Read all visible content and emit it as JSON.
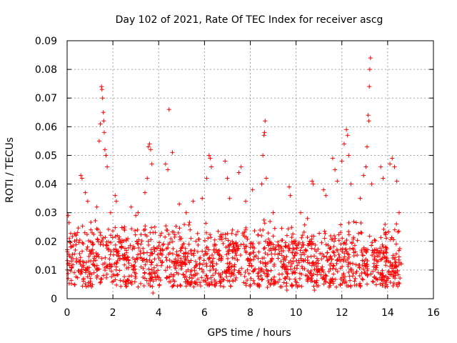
{
  "chart_data": {
    "type": "scatter",
    "title": "Day 102 of 2021, Rate Of TEC Index for receiver ascg",
    "xlabel": "GPS time / hours",
    "ylabel": "ROTI / TECUs",
    "xlim": [
      0,
      16
    ],
    "ylim": [
      0,
      0.09
    ],
    "x_ticks": [
      0,
      2,
      4,
      6,
      8,
      10,
      12,
      14,
      16
    ],
    "y_ticks": [
      0,
      0.01,
      0.02,
      0.03,
      0.04,
      0.05,
      0.06,
      0.07,
      0.08,
      0.09
    ],
    "x_tick_labels": [
      "0",
      "2",
      "4",
      "6",
      "8",
      "10",
      "12",
      "14",
      "16"
    ],
    "y_tick_labels": [
      "0",
      "0.01",
      "0.02",
      "0.03",
      "0.04",
      "0.05",
      "0.06",
      "0.07",
      "0.08",
      "0.09"
    ],
    "grid": true,
    "marker": "+",
    "marker_color": "#ff0000",
    "data_x_range": [
      0,
      14.6
    ],
    "series": [
      {
        "name": "ROTI",
        "points": [
          [
            0.05,
            0.029
          ],
          [
            0.1,
            0.021
          ],
          [
            0.15,
            0.018
          ],
          [
            0.2,
            0.011
          ],
          [
            0.6,
            0.043
          ],
          [
            0.65,
            0.042
          ],
          [
            0.8,
            0.037
          ],
          [
            0.9,
            0.034
          ],
          [
            1.3,
            0.032
          ],
          [
            1.4,
            0.055
          ],
          [
            1.45,
            0.061
          ],
          [
            1.5,
            0.074
          ],
          [
            1.52,
            0.073
          ],
          [
            1.55,
            0.07
          ],
          [
            1.58,
            0.065
          ],
          [
            1.6,
            0.062
          ],
          [
            1.62,
            0.058
          ],
          [
            1.65,
            0.052
          ],
          [
            1.7,
            0.05
          ],
          [
            1.75,
            0.046
          ],
          [
            1.9,
            0.03
          ],
          [
            2.1,
            0.036
          ],
          [
            2.15,
            0.034
          ],
          [
            2.8,
            0.032
          ],
          [
            3.0,
            0.029
          ],
          [
            3.1,
            0.03
          ],
          [
            3.4,
            0.037
          ],
          [
            3.5,
            0.042
          ],
          [
            3.55,
            0.053
          ],
          [
            3.6,
            0.054
          ],
          [
            3.65,
            0.052
          ],
          [
            3.7,
            0.047
          ],
          [
            3.75,
            0.002
          ],
          [
            4.3,
            0.047
          ],
          [
            4.4,
            0.045
          ],
          [
            4.45,
            0.066
          ],
          [
            4.6,
            0.051
          ],
          [
            4.9,
            0.033
          ],
          [
            5.2,
            0.03
          ],
          [
            5.5,
            0.034
          ],
          [
            5.9,
            0.035
          ],
          [
            6.1,
            0.042
          ],
          [
            6.2,
            0.05
          ],
          [
            6.25,
            0.049
          ],
          [
            6.3,
            0.046
          ],
          [
            6.9,
            0.048
          ],
          [
            7.0,
            0.042
          ],
          [
            7.1,
            0.035
          ],
          [
            7.5,
            0.044
          ],
          [
            7.6,
            0.046
          ],
          [
            7.8,
            0.034
          ],
          [
            8.1,
            0.038
          ],
          [
            8.5,
            0.04
          ],
          [
            8.55,
            0.05
          ],
          [
            8.6,
            0.057
          ],
          [
            8.62,
            0.058
          ],
          [
            8.65,
            0.062
          ],
          [
            8.7,
            0.042
          ],
          [
            8.75,
            0.004
          ],
          [
            9.0,
            0.03
          ],
          [
            9.6,
            0.003
          ],
          [
            9.7,
            0.039
          ],
          [
            9.75,
            0.036
          ],
          [
            10.2,
            0.03
          ],
          [
            10.5,
            0.028
          ],
          [
            10.7,
            0.041
          ],
          [
            10.75,
            0.04
          ],
          [
            10.8,
            0.003
          ],
          [
            11.2,
            0.038
          ],
          [
            11.3,
            0.036
          ],
          [
            11.6,
            0.049
          ],
          [
            11.7,
            0.045
          ],
          [
            11.8,
            0.041
          ],
          [
            12.0,
            0.048
          ],
          [
            12.1,
            0.054
          ],
          [
            12.2,
            0.059
          ],
          [
            12.25,
            0.057
          ],
          [
            12.3,
            0.05
          ],
          [
            12.4,
            0.04
          ],
          [
            12.8,
            0.035
          ],
          [
            12.95,
            0.043
          ],
          [
            13.05,
            0.046
          ],
          [
            13.1,
            0.053
          ],
          [
            13.15,
            0.064
          ],
          [
            13.18,
            0.062
          ],
          [
            13.2,
            0.074
          ],
          [
            13.22,
            0.08
          ],
          [
            13.25,
            0.084
          ],
          [
            13.3,
            0.04
          ],
          [
            13.7,
            0.046
          ],
          [
            13.8,
            0.042
          ],
          [
            14.1,
            0.047
          ],
          [
            14.2,
            0.049
          ],
          [
            14.3,
            0.046
          ],
          [
            14.4,
            0.041
          ],
          [
            14.5,
            0.03
          ]
        ]
      }
    ]
  }
}
